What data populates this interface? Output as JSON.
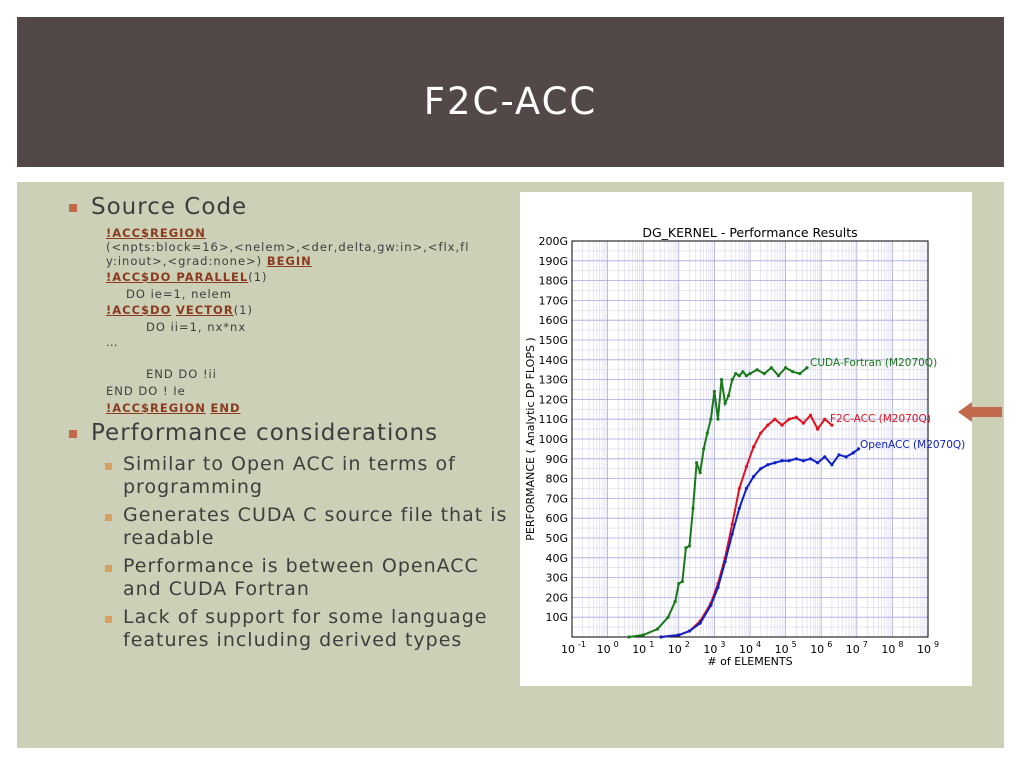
{
  "slide": {
    "title": "F2C-ACC"
  },
  "content": {
    "source_heading": "Source Code",
    "code_lines": [
      {
        "kw": "!ACC$REGION",
        "rest": ""
      },
      {
        "kw": "",
        "rest": "(<npts:block=16>,<nelem>,<der,delta,gw:in>,<flx,fl"
      },
      {
        "kw": "",
        "rest": "y:inout>,<grad:none>)"
      },
      {
        "kw": "!ACC$DO PARALLEL",
        "rest": "(1)"
      },
      {
        "kw": "",
        "rest": "DO ie=1, nelem"
      },
      {
        "kw": "!ACC$DO",
        "rest": "(1)"
      },
      {
        "kw": "",
        "rest": "DO ii=1, nx*nx"
      },
      {
        "kw": "",
        "rest": "…"
      },
      {
        "kw": "",
        "rest": "END DO !ii"
      },
      {
        "kw": "",
        "rest": "END DO ! Ie"
      },
      {
        "kw": "!ACC$REGION",
        "rest": ""
      }
    ],
    "kw_begin": "BEGIN",
    "kw_vector": "VECTOR",
    "kw_end": "END",
    "perf_heading": "Performance considerations",
    "perf_items": [
      "Similar to Open ACC in terms of programming",
      "Generates CUDA C source file that is readable",
      "Performance is between OpenACC and CUDA Fortran",
      "Lack of support for some language features including derived types"
    ]
  },
  "colors": {
    "header_bg": "#514847",
    "content_bg": "#ccd0b7",
    "bullet_l1": "#c0694d",
    "bullet_l2": "#d8a060",
    "arrow": "#c0694d",
    "cuda": "#1a7a1a",
    "f2c": "#e0121b",
    "openacc": "#1020c8"
  },
  "chart_data": {
    "type": "line",
    "title": "DG_KERNEL - Performance Results",
    "xlabel": "# of ELEMENTS",
    "ylabel": "PERFORMANCE ( Analytic DP FLOPS )",
    "x_scale": "log",
    "xlim_exp": [
      -1,
      9
    ],
    "ylim": [
      0,
      200
    ],
    "x_ticks": [
      "10",
      "10",
      "10",
      "10",
      "10",
      "10",
      "10",
      "10",
      "10",
      "10",
      "10"
    ],
    "x_tick_exps": [
      "-1",
      "0",
      "1",
      "2",
      "3",
      "4",
      "5",
      "6",
      "7",
      "8",
      "9"
    ],
    "y_ticks": [
      "10G",
      "20G",
      "30G",
      "40G",
      "50G",
      "60G",
      "70G",
      "80G",
      "90G",
      "100G",
      "110G",
      "120G",
      "130G",
      "140G",
      "150G",
      "160G",
      "170G",
      "180G",
      "190G",
      "200G"
    ],
    "grid": true,
    "series": [
      {
        "name": "CUDA-Fortran (M2070Q)",
        "log10x": [
          0.6,
          1.0,
          1.4,
          1.7,
          1.9,
          2.0,
          2.1,
          2.2,
          2.3,
          2.4,
          2.5,
          2.6,
          2.7,
          2.8,
          2.9,
          3.0,
          3.1,
          3.2,
          3.3,
          3.4,
          3.5,
          3.6,
          3.7,
          3.8,
          3.9,
          4.0,
          4.2,
          4.4,
          4.6,
          4.8,
          5.0,
          5.2,
          5.4,
          5.6
        ],
        "values": [
          0,
          1,
          4,
          10,
          18,
          27,
          28,
          45,
          46,
          65,
          88,
          83,
          95,
          103,
          110,
          124,
          110,
          130,
          118,
          122,
          130,
          133,
          132,
          134,
          132,
          133,
          135,
          133,
          136,
          132,
          136,
          134,
          133,
          136
        ]
      },
      {
        "name": "F2C-ACC (M2070Q)",
        "log10x": [
          1.5,
          2.0,
          2.3,
          2.6,
          2.9,
          3.1,
          3.3,
          3.5,
          3.7,
          3.9,
          4.1,
          4.3,
          4.5,
          4.7,
          4.9,
          5.1,
          5.3,
          5.5,
          5.7,
          5.9,
          6.1,
          6.3
        ],
        "values": [
          0,
          1,
          3,
          8,
          17,
          27,
          40,
          57,
          75,
          86,
          96,
          103,
          107,
          110,
          107,
          110,
          111,
          108,
          112,
          105,
          110,
          107
        ]
      },
      {
        "name": "OpenACC (M2070Q)",
        "log10x": [
          1.5,
          2.0,
          2.3,
          2.6,
          2.9,
          3.1,
          3.3,
          3.5,
          3.7,
          3.9,
          4.1,
          4.3,
          4.5,
          4.7,
          4.9,
          5.1,
          5.3,
          5.5,
          5.7,
          5.9,
          6.1,
          6.3,
          6.5,
          6.7,
          6.9,
          7.05
        ],
        "values": [
          0,
          1,
          3,
          7,
          16,
          25,
          38,
          52,
          65,
          75,
          81,
          85,
          87,
          88,
          89,
          89,
          90,
          89,
          90,
          88,
          91,
          87,
          92,
          91,
          93,
          95
        ]
      }
    ]
  }
}
